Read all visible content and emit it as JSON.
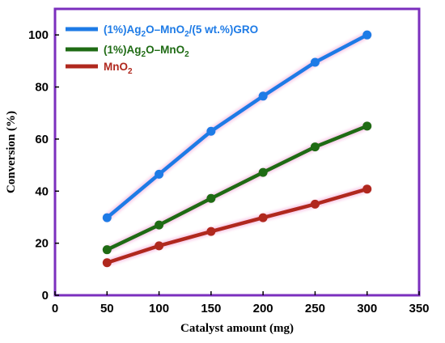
{
  "chart_data": {
    "type": "line",
    "title": "",
    "xlabel": "Catalyst amount (mg)",
    "ylabel": "Conversion (%)",
    "xlim": [
      0,
      350
    ],
    "ylim": [
      0,
      110
    ],
    "xticks": [
      0,
      50,
      100,
      150,
      200,
      250,
      300,
      350
    ],
    "yticks": [
      0,
      20,
      40,
      60,
      80,
      100
    ],
    "grid": false,
    "legend_position": "top-left",
    "frame_color": "#7b2fbe",
    "x": [
      50,
      100,
      150,
      200,
      250,
      300
    ],
    "series": [
      {
        "name": "(1%)Ag2O–MnO2/(5 wt.%)GRO",
        "legend": [
          {
            "t": "(1%)Ag"
          },
          {
            "t": "2",
            "sub": true
          },
          {
            "t": "O–MnO"
          },
          {
            "t": "2",
            "sub": true
          },
          {
            "t": "/(5 wt.%)GRO"
          }
        ],
        "color": "#1e7be6",
        "values": [
          29.8,
          46.5,
          63.0,
          76.5,
          89.5,
          100.0
        ]
      },
      {
        "name": "(1%)Ag2O–MnO2",
        "legend": [
          {
            "t": "(1%)Ag"
          },
          {
            "t": "2",
            "sub": true
          },
          {
            "t": "O–MnO"
          },
          {
            "t": "2",
            "sub": true
          }
        ],
        "color": "#1f6b14",
        "values": [
          17.5,
          27.0,
          37.2,
          47.2,
          57.0,
          65.0
        ]
      },
      {
        "name": "MnO2",
        "legend": [
          {
            "t": "MnO"
          },
          {
            "t": "2",
            "sub": true
          }
        ],
        "color": "#b0281e",
        "values": [
          12.5,
          19.0,
          24.5,
          29.8,
          35.0,
          40.8
        ]
      }
    ]
  }
}
